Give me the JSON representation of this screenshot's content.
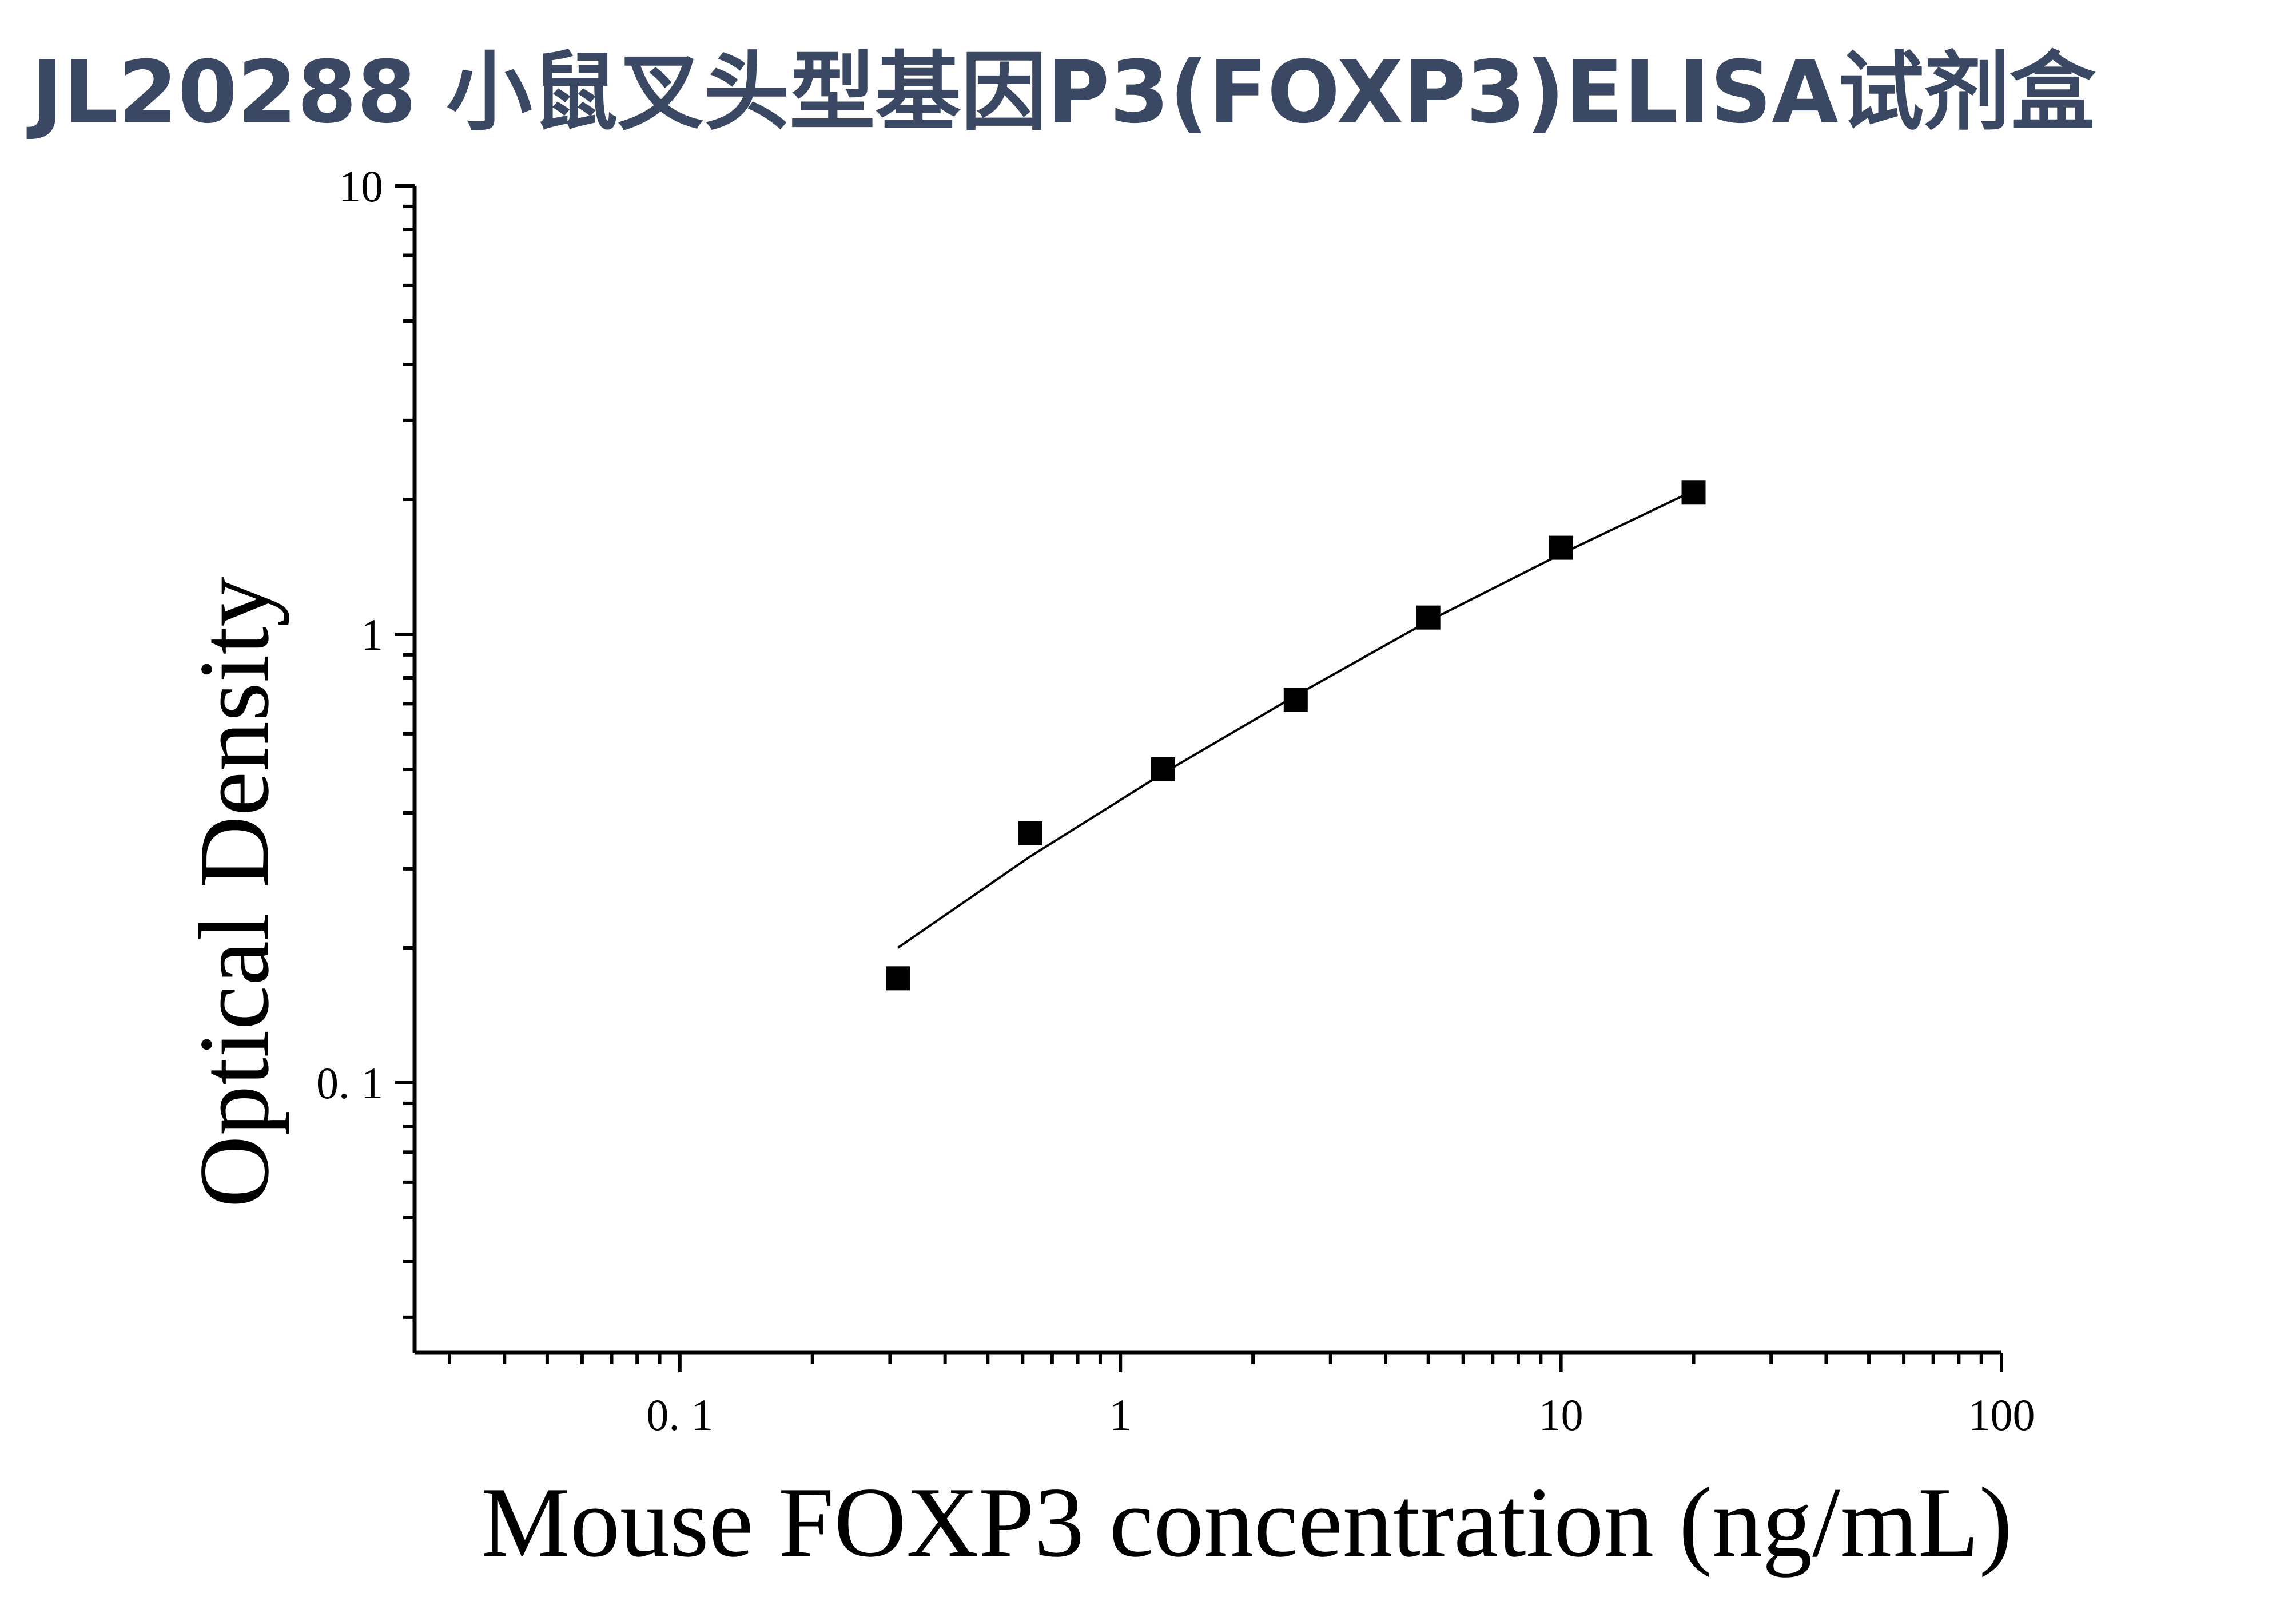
{
  "title": "JL20288 小鼠叉头型基因P3(FOXP3)ELISA试剂盒",
  "chart_data": {
    "type": "scatter",
    "xlabel": "Mouse FOXP3 concentration (ng/mL)",
    "ylabel": "Optical Density",
    "x_scale": "log",
    "y_scale": "log",
    "xlim": [
      0.025,
      100
    ],
    "ylim": [
      0.025,
      10
    ],
    "x_ticks": [
      {
        "value": 0.1,
        "label": "0. 1"
      },
      {
        "value": 1,
        "label": "1"
      },
      {
        "value": 10,
        "label": "10"
      },
      {
        "value": 100,
        "label": "100"
      }
    ],
    "y_ticks": [
      {
        "value": 0.1,
        "label": "0. 1"
      },
      {
        "value": 1,
        "label": "1"
      },
      {
        "value": 10,
        "label": "10"
      }
    ],
    "grid": false,
    "series": [
      {
        "marker": "square",
        "color": "#000000",
        "x": [
          0.3125,
          0.625,
          1.25,
          2.5,
          5,
          10,
          20
        ],
        "y": [
          0.171,
          0.36,
          0.5,
          0.715,
          1.09,
          1.56,
          2.07
        ]
      }
    ],
    "fit_line": {
      "color": "#000000",
      "x": [
        0.3125,
        0.625,
        1.25,
        2.5,
        5,
        10,
        20
      ],
      "y": [
        0.2,
        0.32,
        0.49,
        0.73,
        1.07,
        1.51,
        2.09
      ]
    }
  }
}
